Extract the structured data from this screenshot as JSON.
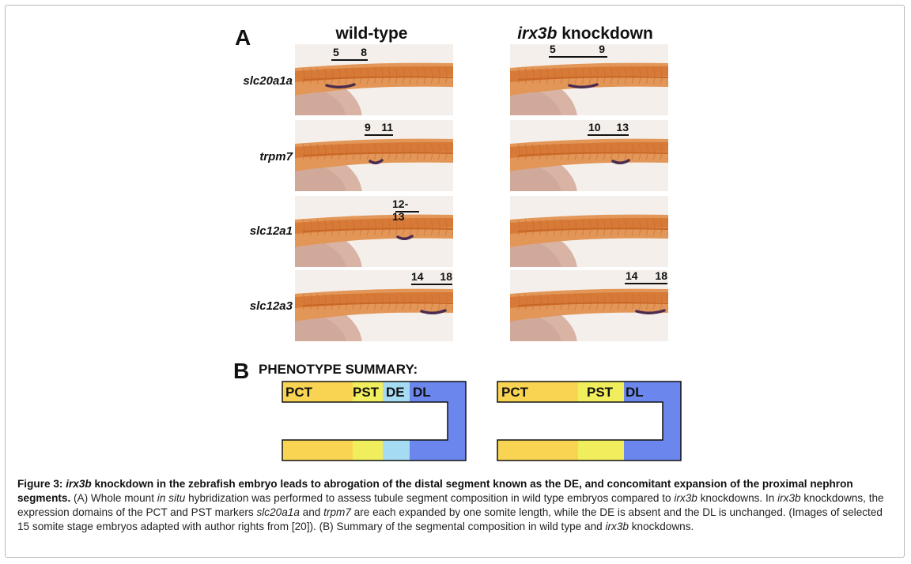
{
  "panel_a": {
    "letter": "A",
    "col_wildtype": "wild-type",
    "col_knockdown_gene": "irx3b",
    "col_knockdown_suffix": " knockdown",
    "rows": [
      {
        "gene": "slc20a1a",
        "wt_start": "5",
        "wt_end": "8",
        "kd_start": "5",
        "kd_end": "9"
      },
      {
        "gene": "trpm7",
        "wt_start": "9",
        "wt_end": "11",
        "kd_start": "10",
        "kd_end": "13"
      },
      {
        "gene": "slc12a1",
        "wt_range": "12-13"
      },
      {
        "gene": "slc12a3",
        "wt_start": "14",
        "wt_end": "18",
        "kd_start": "14",
        "kd_end": "18"
      }
    ]
  },
  "panel_b": {
    "letter": "B",
    "title": "PHENOTYPE SUMMARY:",
    "wildtype_segments": [
      "PCT",
      "PST",
      "DE",
      "DL"
    ],
    "knockdown_segments": [
      "PCT",
      "PST",
      "DL"
    ],
    "colors": {
      "PCT": "#f8d452",
      "PST": "#f1ee5e",
      "DE": "#a6dcf3",
      "DL": "#6b86ed"
    }
  },
  "caption": {
    "fig_label": "Figure 3: ",
    "title_gene": "irx3b",
    "title_rest": " knockdown in the zebrafish embryo leads to abrogation of the distal segment known as the DE, and concomitant expansion of the proximal nephron segments.",
    "p1": " (A) Whole mount ",
    "p1_it": "in situ",
    "p2": " hybridization was performed to assess tubule segment composition in wild type embryos compared to ",
    "p2_it": "irx3b",
    "p3": " knockdowns. In ",
    "p3_it": "irx3b",
    "p4": " knockdowns, the expression domains of the PCT and PST markers ",
    "p4_it": "slc20a1a",
    "p5": " and ",
    "p5_it": "trpm7",
    "p6": " are each expanded by one somite length, while the DE is absent and the DL is unchanged. (Images of selected 15 somite stage embryos adapted with author rights from [20]). (B) Summary of the segmental composition in wild type and ",
    "p6_it": "irx3b",
    "p7": " knockdowns."
  }
}
